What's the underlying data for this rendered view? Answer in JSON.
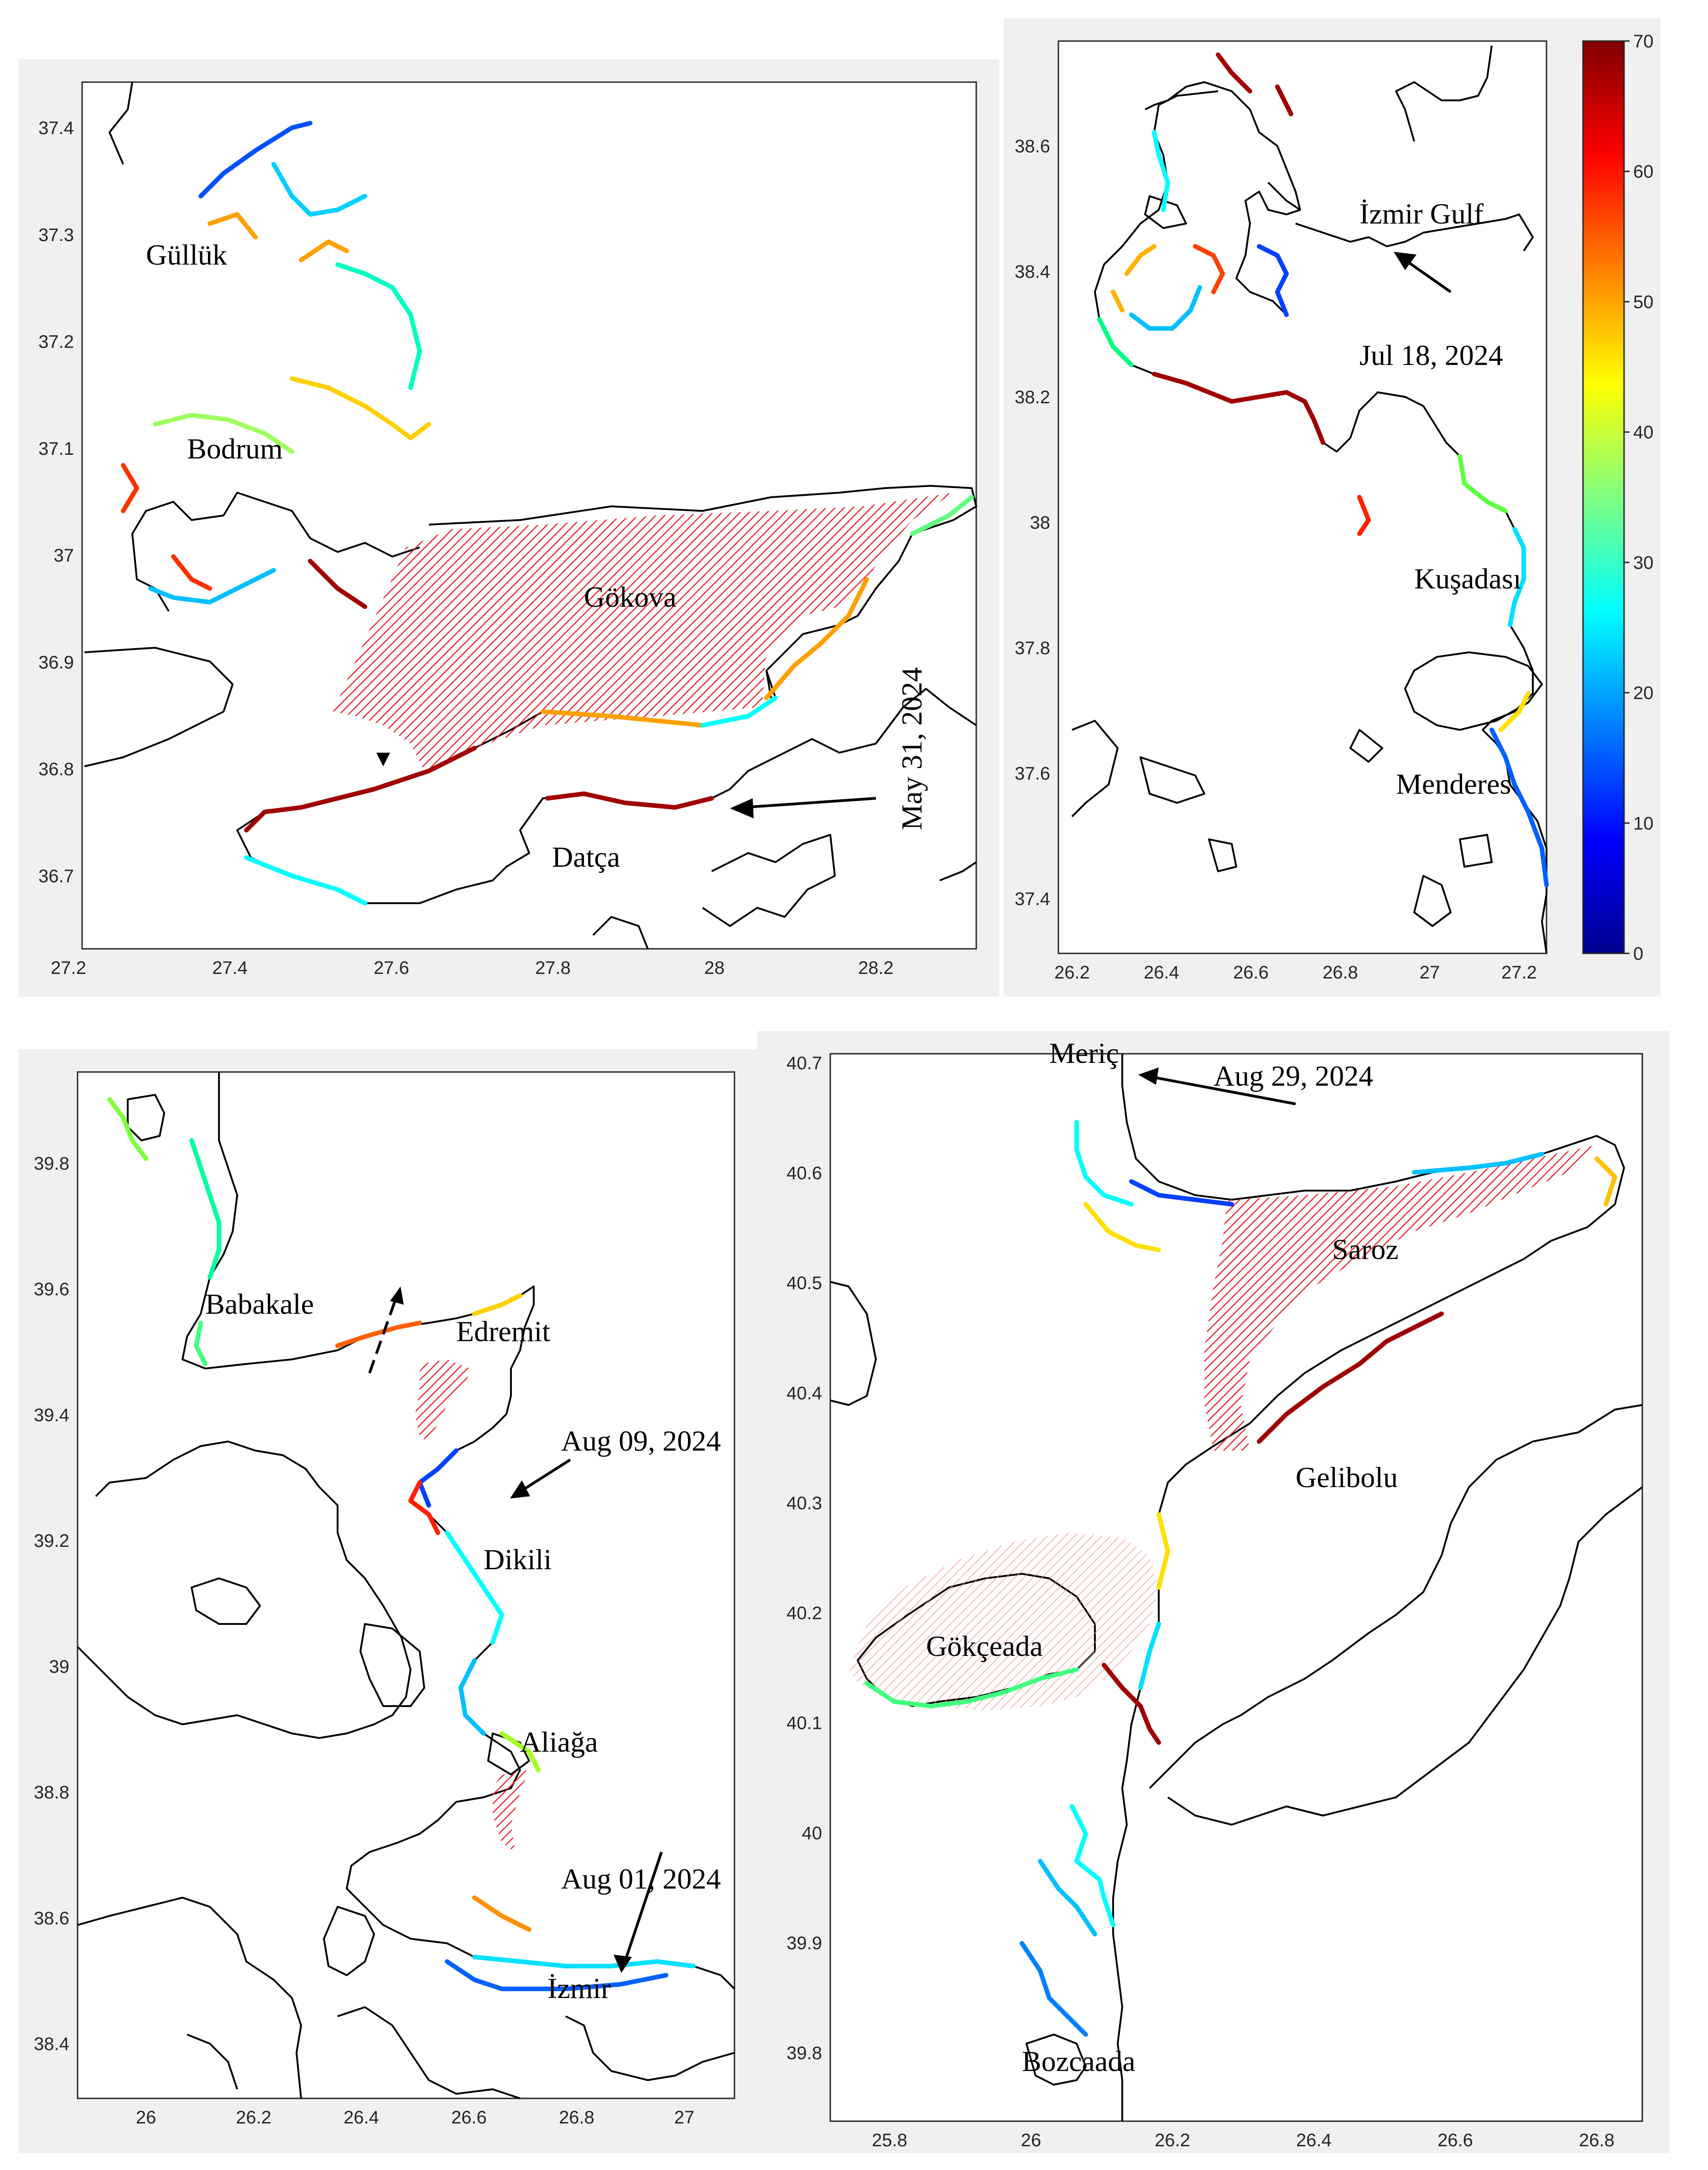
{
  "colorbar": {
    "min": 0,
    "max": 70,
    "ticks": [
      "0",
      "10",
      "20",
      "30",
      "40",
      "50",
      "60",
      "70"
    ],
    "colors": [
      "#00008f",
      "#0000ff",
      "#0080ff",
      "#00ffff",
      "#80ff80",
      "#ffff00",
      "#ff8000",
      "#ff0000",
      "#800000"
    ]
  },
  "hatch_color": "#e8262b",
  "panels": [
    {
      "id": "a",
      "xticks": [
        "27.2",
        "27.4",
        "27.6",
        "27.8",
        "28",
        "28.2"
      ],
      "yticks": [
        "36.7",
        "36.8",
        "36.9",
        "37",
        "37.1",
        "37.2",
        "37.3",
        "37.4"
      ],
      "places": [
        "Güllük",
        "Bodrum",
        "Gökova",
        "Datça"
      ],
      "date": "May 31, 2024"
    },
    {
      "id": "b",
      "xticks": [
        "26.2",
        "26.4",
        "26.6",
        "26.8",
        "27",
        "27.2"
      ],
      "yticks": [
        "37.4",
        "37.6",
        "37.8",
        "38",
        "38.2",
        "38.4",
        "38.6"
      ],
      "places": [
        "İzmir Gulf",
        "Kuşadası",
        "Menderes"
      ],
      "date": "Jul 18, 2024"
    },
    {
      "id": "c",
      "xticks": [
        "26",
        "26.2",
        "26.4",
        "26.6",
        "26.8",
        "27"
      ],
      "yticks": [
        "38.4",
        "38.6",
        "38.8",
        "39",
        "39.2",
        "39.4",
        "39.6",
        "39.8"
      ],
      "places": [
        "Babakale",
        "Edremit",
        "Dikili",
        "Aliağa",
        "İzmir"
      ],
      "dates": [
        "Aug 09, 2024",
        "Aug 01, 2024"
      ]
    },
    {
      "id": "d",
      "xticks": [
        "25.8",
        "26",
        "26.2",
        "26.4",
        "26.6",
        "26.8"
      ],
      "yticks": [
        "39.8",
        "39.9",
        "40",
        "40.1",
        "40.2",
        "40.3",
        "40.4",
        "40.5",
        "40.6",
        "40.7"
      ],
      "places": [
        "Meriç",
        "Saroz",
        "Gelibolu",
        "Gökçeada",
        "Bozcaada"
      ],
      "date": "Aug 29, 2024"
    }
  ]
}
